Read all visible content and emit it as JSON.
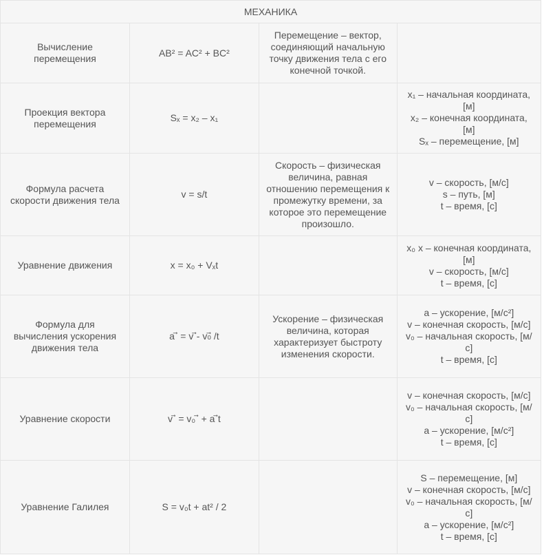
{
  "table": {
    "title": "МЕХАНИКА",
    "rows": [
      {
        "name": "Вычисление перемещения",
        "formula": "AB² = AC² + BC²",
        "definition": "Перемещение – вектор, соединяющий начальную точку движения тела с его конечной точкой.",
        "variables": []
      },
      {
        "name": "Проекция вектора перемещения",
        "formula": "Sₓ = x₂ – x₁",
        "definition": "",
        "variables": [
          "x₁ – начальная координата, [м]",
          "x₂ – конечная координата, [м]",
          "Sₓ – перемещение, [м]"
        ]
      },
      {
        "name": "Формула расчета скорости движения тела",
        "formula": "v = s/t",
        "definition": "Скорость – физическая величина, равная отношению перемещения к промежутку времени, за которое это перемещение произошло.",
        "variables": [
          "v – скорость, [м/с]",
          "s – путь, [м]",
          "t – время, [с]"
        ]
      },
      {
        "name": "Уравнение движения",
        "formula": "x = x₀ + Vₓt",
        "definition": "",
        "variables": [
          "x₀ x – конечная координата, [м]",
          "v – скорость, [м/с]",
          "t – время, [с]"
        ]
      },
      {
        "name": "Формула для вычисления ускорения движения тела",
        "formula": "a ⃗ = v ⃗- v₀⃗ /t",
        "definition": "Ускорение – физическая величина, которая характеризует быстроту изменения скорости.",
        "variables": [
          "a – ускорение, [м/с²]",
          "v – конечная скорость, [м/с]",
          "v₀ – начальная скорость, [м/с]",
          "t – время, [с]"
        ]
      },
      {
        "name": "Уравнение скорости",
        "formula": "v ⃗ = v₀ ⃗ + a ⃗t",
        "definition": "",
        "variables": [
          "v – конечная скорость, [м/с]",
          "v₀ – начальная скорость, [м/с]",
          "a – ускорение, [м/с²]",
          "t – время, [с]"
        ]
      },
      {
        "name": "Уравнение Галилея",
        "formula": "S = v₀t + at² / 2",
        "definition": "",
        "variables": [
          "S – перемещение, [м]",
          "v – конечная скорость, [м/с]",
          "v₀ – начальная скорость, [м/с]",
          "a – ускорение, [м/с²]",
          "t – время, [с]"
        ]
      }
    ]
  }
}
